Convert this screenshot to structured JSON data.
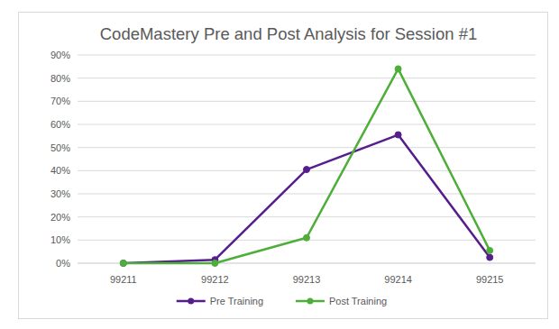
{
  "chart_data": {
    "type": "line",
    "title": "CodeMastery Pre and Post Analysis for Session #1",
    "categories": [
      "99211",
      "99212",
      "99213",
      "99214",
      "99215"
    ],
    "series": [
      {
        "name": "Pre Training",
        "color": "#561e8c",
        "marker": "circle",
        "values": [
          0,
          1.5,
          40.5,
          55.5,
          2.5
        ]
      },
      {
        "name": "Post Training",
        "color": "#4eae3a",
        "marker": "circle",
        "values": [
          0,
          0,
          11,
          84,
          5.5
        ]
      }
    ],
    "ylim": [
      0,
      90
    ],
    "yticks": [
      {
        "value": 0,
        "label": "0%"
      },
      {
        "value": 10,
        "label": "10%"
      },
      {
        "value": 20,
        "label": "20%"
      },
      {
        "value": 30,
        "label": "30%"
      },
      {
        "value": 40,
        "label": "40%"
      },
      {
        "value": 50,
        "label": "50%"
      },
      {
        "value": 60,
        "label": "60%"
      },
      {
        "value": 70,
        "label": "70%"
      },
      {
        "value": 80,
        "label": "80%"
      },
      {
        "value": 90,
        "label": "90%"
      }
    ],
    "grid": true,
    "legend": "bottom"
  }
}
